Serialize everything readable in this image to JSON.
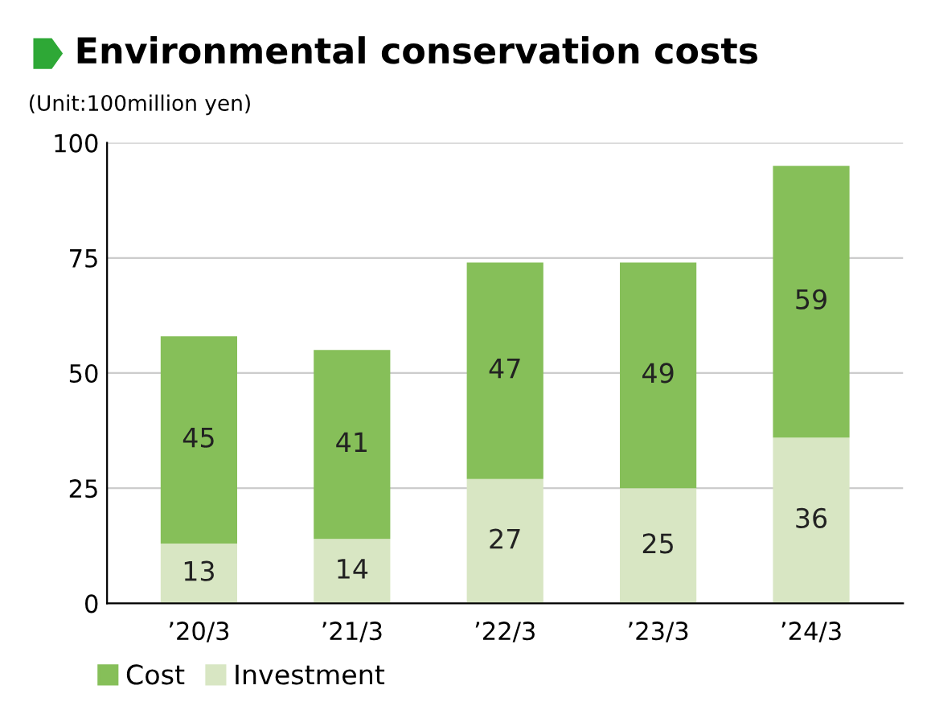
{
  "chart_data": {
    "type": "bar",
    "title": "Environmental conservation costs",
    "ylabel": "(Unit:100million yen)",
    "categories": [
      "’20/3",
      "’21/3",
      "’22/3",
      "’23/3",
      "’24/3"
    ],
    "stacked": true,
    "series": [
      {
        "name": "Investment",
        "color": "#d8e6c3",
        "values": [
          13,
          14,
          27,
          25,
          36
        ]
      },
      {
        "name": "Cost",
        "color": "#86bf59",
        "values": [
          45,
          41,
          47,
          49,
          59
        ]
      }
    ],
    "ylim": [
      0,
      100
    ],
    "yticks": [
      0,
      25,
      50,
      75,
      100
    ],
    "grid": "y",
    "legend": "bottom left",
    "data_labels": true
  }
}
